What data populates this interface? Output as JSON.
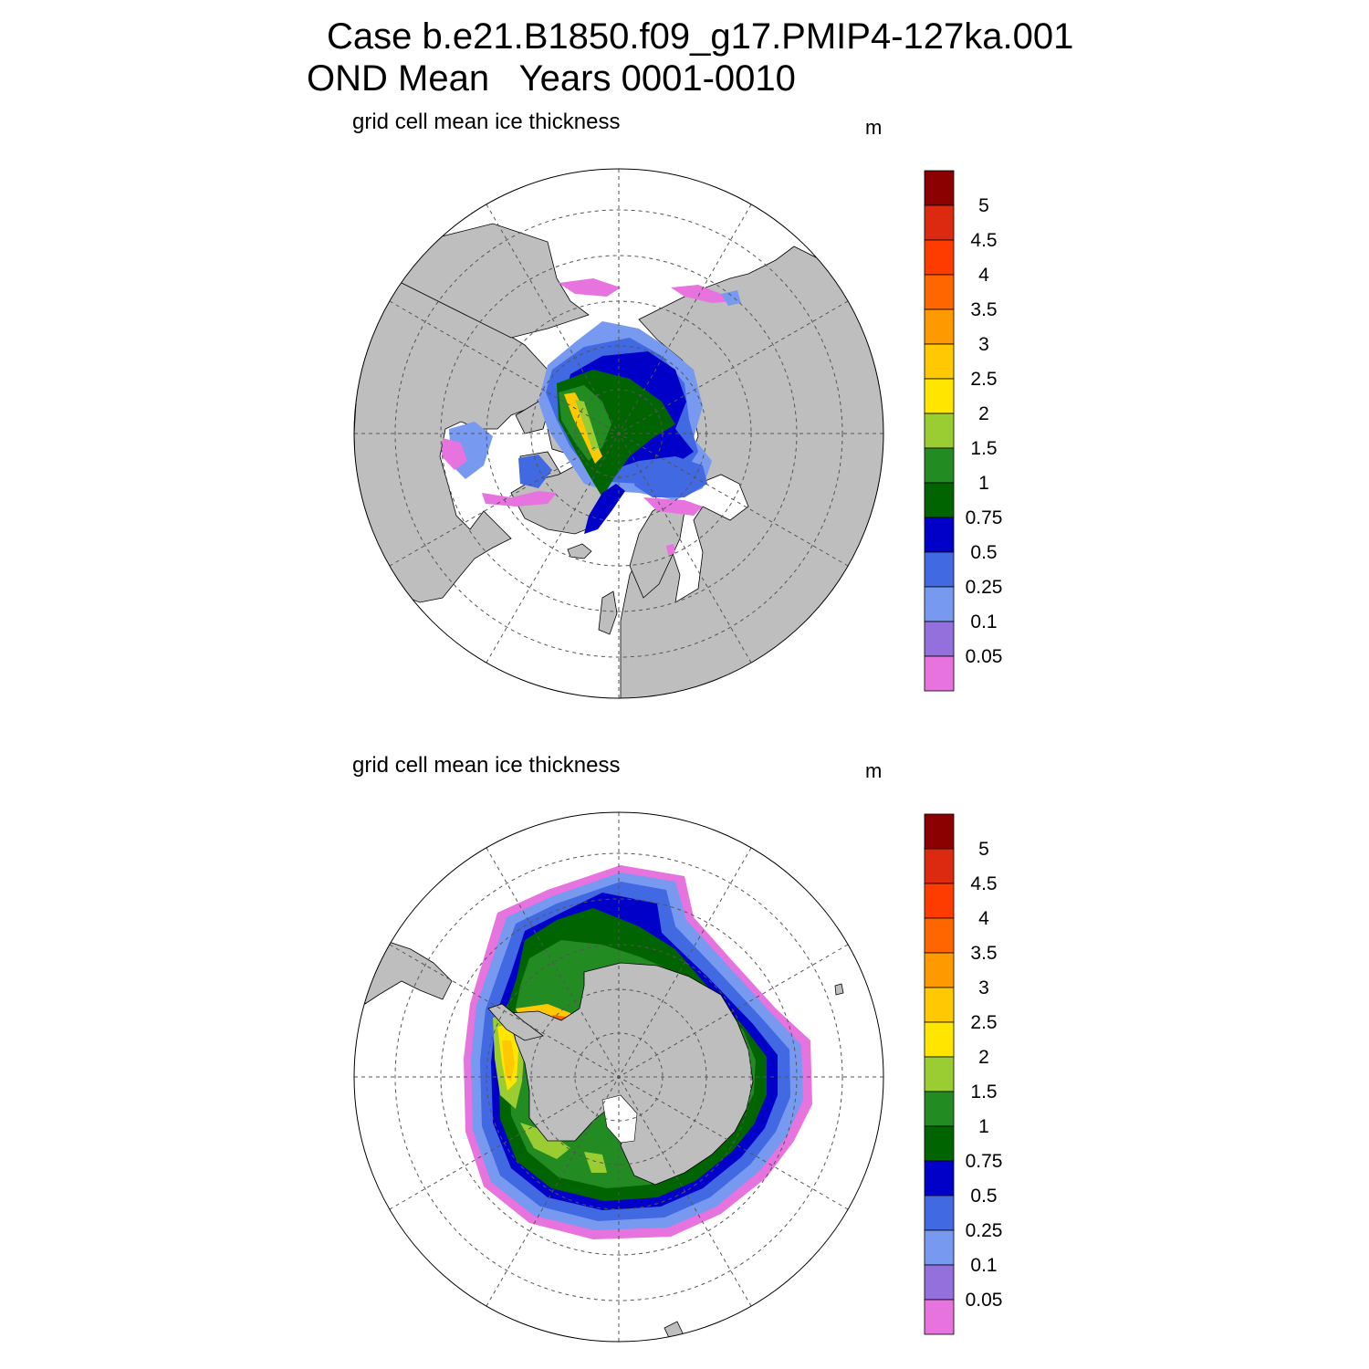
{
  "title_line1": "Case b.e21.B1850.f09_g17.PMIP4-127ka.001",
  "title_line2": "OND Mean   Years 0001-0010",
  "panels": [
    {
      "id": "north",
      "label": "grid cell mean ice thickness",
      "units": "m",
      "hemisphere": "north"
    },
    {
      "id": "south",
      "label": "grid cell mean ice thickness",
      "units": "m",
      "hemisphere": "south"
    }
  ],
  "colorbar": {
    "tick_labels": [
      "5",
      "4.5",
      "4",
      "3.5",
      "3",
      "2.5",
      "2",
      "1.5",
      "1",
      "0.75",
      "0.5",
      "0.25",
      "0.1",
      "0.05"
    ],
    "colors": [
      "#8b0000",
      "#dc2a10",
      "#ff3c00",
      "#ff6600",
      "#ff9900",
      "#ffc800",
      "#ffe600",
      "#9acd32",
      "#228b22",
      "#006400",
      "#0000c8",
      "#4169e1",
      "#7799f0",
      "#9370db",
      "#e673de"
    ]
  },
  "colors": {
    "land": "#bebebe",
    "ocean": "#ffffff",
    "grid": "#555555"
  }
}
